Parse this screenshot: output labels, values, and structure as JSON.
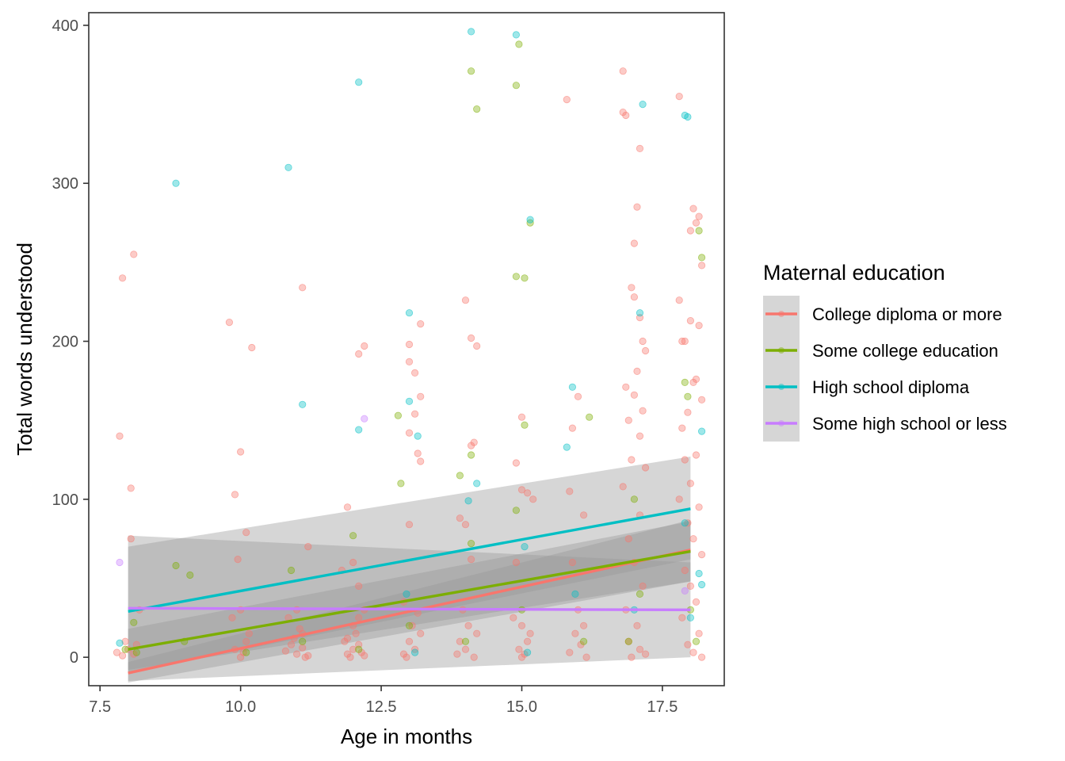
{
  "chart_data": {
    "type": "scatter",
    "title": "",
    "xlabel": "Age in months",
    "ylabel": "Total words understood",
    "xlim": [
      7.3,
      18.6
    ],
    "ylim": [
      -18,
      408
    ],
    "x_ticks": [
      "7.5",
      "10.0",
      "12.5",
      "15.0",
      "17.5"
    ],
    "x_tick_values": [
      7.5,
      10.0,
      12.5,
      15.0,
      17.5
    ],
    "y_ticks": [
      "0",
      "100",
      "200",
      "300",
      "400"
    ],
    "y_tick_values": [
      0,
      100,
      200,
      300,
      400
    ],
    "grid": false,
    "legend": {
      "title": "Maternal education",
      "placement": "right",
      "entries": [
        "College diploma or more",
        "Some college education",
        "High school diploma",
        "Some high school or less"
      ]
    },
    "series": [
      {
        "name": "College diploma or more",
        "color": "#F8766D",
        "fit": {
          "x": [
            8,
            18
          ],
          "y": [
            -10,
            68
          ],
          "ci_lower": [
            -16,
            48
          ],
          "ci_upper": [
            -3,
            87
          ]
        },
        "points": [
          [
            7.9,
            240
          ],
          [
            8.1,
            255
          ],
          [
            8.05,
            107
          ],
          [
            7.85,
            140
          ],
          [
            7.8,
            3
          ],
          [
            7.9,
            1
          ],
          [
            8.0,
            5
          ],
          [
            8.1,
            2
          ],
          [
            8.15,
            8
          ],
          [
            8.05,
            75
          ],
          [
            8.2,
            30
          ],
          [
            7.95,
            10
          ],
          [
            9.8,
            212
          ],
          [
            10.2,
            196
          ],
          [
            10.0,
            130
          ],
          [
            9.9,
            103
          ],
          [
            10.1,
            79
          ],
          [
            9.95,
            62
          ],
          [
            10.05,
            3
          ],
          [
            9.9,
            5
          ],
          [
            10.1,
            10
          ],
          [
            10.0,
            0
          ],
          [
            9.85,
            25
          ],
          [
            10.15,
            15
          ],
          [
            10.0,
            30
          ],
          [
            11.1,
            234
          ],
          [
            11.2,
            70
          ],
          [
            10.8,
            4
          ],
          [
            10.9,
            8
          ],
          [
            11.0,
            2
          ],
          [
            11.1,
            6
          ],
          [
            11.2,
            1
          ],
          [
            10.95,
            12
          ],
          [
            11.05,
            18
          ],
          [
            11.15,
            0
          ],
          [
            10.85,
            25
          ],
          [
            11.0,
            30
          ],
          [
            11.1,
            15
          ],
          [
            12.1,
            192
          ],
          [
            12.2,
            197
          ],
          [
            11.9,
            95
          ],
          [
            12.0,
            60
          ],
          [
            11.8,
            55
          ],
          [
            12.1,
            45
          ],
          [
            11.9,
            2
          ],
          [
            12.0,
            5
          ],
          [
            12.1,
            8
          ],
          [
            12.2,
            1
          ],
          [
            11.85,
            10
          ],
          [
            12.05,
            15
          ],
          [
            12.15,
            3
          ],
          [
            11.95,
            0
          ],
          [
            12.0,
            20
          ],
          [
            12.1,
            25
          ],
          [
            11.9,
            12
          ],
          [
            12.2,
            30
          ],
          [
            13.0,
            198
          ],
          [
            13.2,
            211
          ],
          [
            13.0,
            187
          ],
          [
            13.1,
            180
          ],
          [
            13.2,
            165
          ],
          [
            13.1,
            154
          ],
          [
            13.0,
            142
          ],
          [
            13.15,
            129
          ],
          [
            13.2,
            124
          ],
          [
            13.0,
            84
          ],
          [
            12.9,
            35
          ],
          [
            13.1,
            5
          ],
          [
            13.0,
            10
          ],
          [
            12.9,
            2
          ],
          [
            13.2,
            15
          ],
          [
            13.05,
            20
          ],
          [
            12.95,
            0
          ],
          [
            13.15,
            28
          ],
          [
            14.0,
            226
          ],
          [
            14.1,
            202
          ],
          [
            14.2,
            197
          ],
          [
            14.15,
            136
          ],
          [
            14.1,
            134
          ],
          [
            13.9,
            88
          ],
          [
            14.0,
            84
          ],
          [
            14.1,
            62
          ],
          [
            13.9,
            10
          ],
          [
            14.0,
            5
          ],
          [
            14.2,
            15
          ],
          [
            13.85,
            2
          ],
          [
            14.05,
            20
          ],
          [
            14.15,
            0
          ],
          [
            13.95,
            30
          ],
          [
            15.0,
            152
          ],
          [
            14.9,
            123
          ],
          [
            15.0,
            106
          ],
          [
            15.1,
            104
          ],
          [
            15.2,
            100
          ],
          [
            14.9,
            60
          ],
          [
            15.0,
            20
          ],
          [
            15.1,
            10
          ],
          [
            14.95,
            5
          ],
          [
            15.05,
            2
          ],
          [
            15.15,
            15
          ],
          [
            14.85,
            25
          ],
          [
            15.0,
            0
          ],
          [
            15.8,
            353
          ],
          [
            16.0,
            165
          ],
          [
            15.9,
            145
          ],
          [
            15.85,
            105
          ],
          [
            16.1,
            90
          ],
          [
            15.9,
            60
          ],
          [
            16.0,
            30
          ],
          [
            15.95,
            15
          ],
          [
            16.05,
            8
          ],
          [
            15.85,
            3
          ],
          [
            16.1,
            20
          ],
          [
            16.15,
            0
          ],
          [
            16.8,
            371
          ],
          [
            16.8,
            345
          ],
          [
            16.85,
            343
          ],
          [
            17.1,
            322
          ],
          [
            17.05,
            285
          ],
          [
            17.0,
            262
          ],
          [
            16.95,
            234
          ],
          [
            17.0,
            228
          ],
          [
            17.1,
            215
          ],
          [
            17.15,
            200
          ],
          [
            17.2,
            194
          ],
          [
            17.05,
            181
          ],
          [
            16.85,
            171
          ],
          [
            17.0,
            166
          ],
          [
            17.15,
            156
          ],
          [
            16.9,
            150
          ],
          [
            17.1,
            140
          ],
          [
            16.95,
            125
          ],
          [
            17.2,
            120
          ],
          [
            16.8,
            108
          ],
          [
            17.1,
            90
          ],
          [
            16.9,
            75
          ],
          [
            17.0,
            60
          ],
          [
            17.15,
            45
          ],
          [
            16.85,
            30
          ],
          [
            17.05,
            20
          ],
          [
            16.9,
            10
          ],
          [
            17.1,
            5
          ],
          [
            17.2,
            2
          ],
          [
            16.95,
            0
          ],
          [
            17.8,
            355
          ],
          [
            18.05,
            284
          ],
          [
            18.15,
            279
          ],
          [
            18.1,
            275
          ],
          [
            18.0,
            270
          ],
          [
            18.2,
            248
          ],
          [
            17.8,
            226
          ],
          [
            18.15,
            210
          ],
          [
            17.85,
            200
          ],
          [
            17.9,
            200
          ],
          [
            18.0,
            213
          ],
          [
            18.1,
            176
          ],
          [
            18.05,
            174
          ],
          [
            18.2,
            163
          ],
          [
            17.95,
            155
          ],
          [
            17.85,
            145
          ],
          [
            18.1,
            128
          ],
          [
            17.9,
            125
          ],
          [
            18.0,
            110
          ],
          [
            17.8,
            100
          ],
          [
            18.15,
            95
          ],
          [
            17.95,
            85
          ],
          [
            18.05,
            75
          ],
          [
            18.2,
            65
          ],
          [
            17.9,
            55
          ],
          [
            18.0,
            45
          ],
          [
            18.1,
            35
          ],
          [
            17.85,
            25
          ],
          [
            18.15,
            15
          ],
          [
            17.95,
            8
          ],
          [
            18.05,
            3
          ],
          [
            18.2,
            0
          ]
        ]
      },
      {
        "name": "Some college education",
        "color": "#7CAE00",
        "fit": {
          "x": [
            8,
            18
          ],
          "y": [
            5,
            67
          ],
          "ci_lower": [
            -8,
            48
          ],
          "ci_upper": [
            18,
            86
          ]
        },
        "points": [
          [
            8.1,
            22
          ],
          [
            8.15,
            3
          ],
          [
            7.95,
            5
          ],
          [
            8.85,
            58
          ],
          [
            9.0,
            10
          ],
          [
            9.1,
            52
          ],
          [
            10.1,
            3
          ],
          [
            10.9,
            55
          ],
          [
            11.1,
            10
          ],
          [
            12.0,
            77
          ],
          [
            12.1,
            5
          ],
          [
            12.8,
            153
          ],
          [
            12.85,
            110
          ],
          [
            13.0,
            20
          ],
          [
            14.1,
            371
          ],
          [
            14.2,
            347
          ],
          [
            14.1,
            128
          ],
          [
            13.9,
            115
          ],
          [
            14.1,
            72
          ],
          [
            14.0,
            10
          ],
          [
            14.9,
            362
          ],
          [
            14.95,
            388
          ],
          [
            14.9,
            241
          ],
          [
            15.05,
            240
          ],
          [
            15.15,
            275
          ],
          [
            15.05,
            147
          ],
          [
            14.9,
            93
          ],
          [
            15.0,
            30
          ],
          [
            16.2,
            152
          ],
          [
            16.1,
            10
          ],
          [
            17.0,
            100
          ],
          [
            17.1,
            40
          ],
          [
            16.9,
            10
          ],
          [
            17.9,
            174
          ],
          [
            18.15,
            270
          ],
          [
            18.2,
            253
          ],
          [
            17.95,
            165
          ],
          [
            18.0,
            30
          ],
          [
            18.1,
            10
          ]
        ]
      },
      {
        "name": "High school diploma",
        "color": "#00BFC4",
        "fit": {
          "x": [
            8,
            18
          ],
          "y": [
            29,
            94
          ],
          "ci_lower": [
            -10,
            62
          ],
          "ci_upper": [
            70,
            127
          ]
        },
        "points": [
          [
            7.85,
            9
          ],
          [
            8.85,
            300
          ],
          [
            10.85,
            310
          ],
          [
            11.1,
            160
          ],
          [
            12.1,
            364
          ],
          [
            12.1,
            144
          ],
          [
            13.0,
            218
          ],
          [
            13.0,
            162
          ],
          [
            13.15,
            140
          ],
          [
            12.95,
            40
          ],
          [
            13.1,
            3
          ],
          [
            14.1,
            396
          ],
          [
            14.2,
            110
          ],
          [
            14.05,
            99
          ],
          [
            14.9,
            394
          ],
          [
            15.15,
            277
          ],
          [
            15.05,
            70
          ],
          [
            15.1,
            3
          ],
          [
            15.8,
            133
          ],
          [
            15.9,
            171
          ],
          [
            15.95,
            40
          ],
          [
            17.15,
            350
          ],
          [
            17.1,
            218
          ],
          [
            17.0,
            30
          ],
          [
            17.9,
            343
          ],
          [
            17.95,
            342
          ],
          [
            18.2,
            143
          ],
          [
            17.9,
            85
          ],
          [
            18.15,
            53
          ],
          [
            18.2,
            46
          ],
          [
            18.0,
            25
          ]
        ]
      },
      {
        "name": "Some high school or less",
        "color": "#C77CFF",
        "fit": {
          "x": [
            8,
            18
          ],
          "y": [
            31,
            30
          ],
          "ci_lower": [
            -15,
            0
          ],
          "ci_upper": [
            77,
            60
          ]
        },
        "points": [
          [
            7.85,
            60
          ],
          [
            12.2,
            151
          ],
          [
            17.9,
            42
          ]
        ]
      }
    ]
  }
}
